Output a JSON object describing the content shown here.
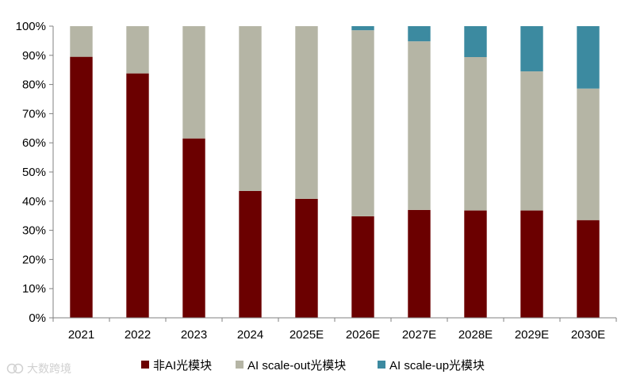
{
  "chart_data": {
    "type": "bar",
    "stacked": true,
    "categories": [
      "2021",
      "2022",
      "2023",
      "2024",
      "2025E",
      "2026E",
      "2027E",
      "2028E",
      "2029E",
      "2030E"
    ],
    "series": [
      {
        "name": "非AI光模块",
        "color": "#6b0000",
        "values": [
          89.5,
          83.8,
          61.5,
          43.5,
          40.8,
          34.8,
          37.0,
          36.8,
          36.8,
          33.5
        ]
      },
      {
        "name": "AI scale-out光模块",
        "color": "#b5b5a5",
        "values": [
          10.5,
          16.2,
          38.5,
          56.5,
          59.2,
          63.8,
          57.8,
          52.6,
          47.7,
          45.1
        ]
      },
      {
        "name": "AI scale-up光模块",
        "color": "#3c8aa0",
        "values": [
          0,
          0,
          0,
          0,
          0,
          1.4,
          5.2,
          10.6,
          15.5,
          21.4
        ]
      }
    ],
    "yticks": [
      "0%",
      "10%",
      "20%",
      "30%",
      "40%",
      "50%",
      "60%",
      "70%",
      "80%",
      "90%",
      "100%"
    ],
    "ylim": [
      0,
      100
    ],
    "grid": false,
    "legend_position": "bottom"
  },
  "watermark": {
    "text": "大数跨境",
    "icon": "logo-icon"
  }
}
